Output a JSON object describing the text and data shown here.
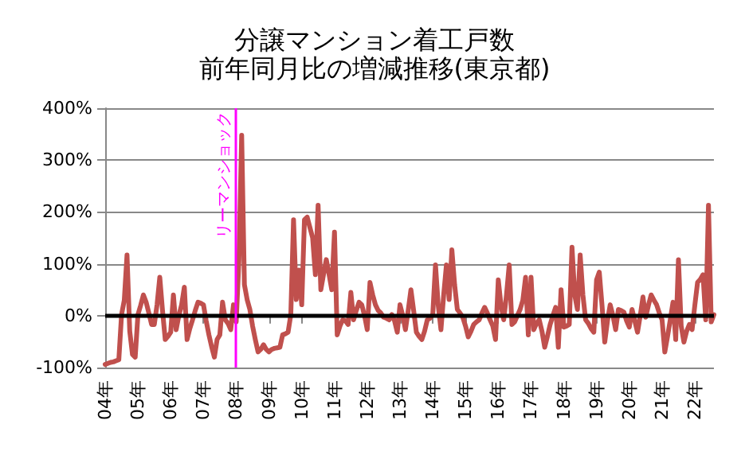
{
  "chart_data": {
    "type": "line",
    "title": "分譲マンション着工戸数",
    "subtitle": "前年同月比の増減推移(東京都)",
    "categories": [
      "04年",
      null,
      null,
      null,
      null,
      null,
      null,
      null,
      null,
      null,
      null,
      null,
      "05年",
      null,
      null,
      null,
      null,
      null,
      null,
      null,
      null,
      null,
      null,
      null,
      "06年",
      null,
      null,
      null,
      null,
      null,
      null,
      null,
      null,
      null,
      null,
      null,
      "07年",
      null,
      null,
      null,
      null,
      null,
      null,
      null,
      null,
      null,
      null,
      null,
      "08年",
      null,
      null,
      null,
      null,
      null,
      null,
      null,
      null,
      null,
      null,
      null,
      "09年",
      null,
      null,
      null,
      null,
      null,
      null,
      null,
      null,
      null,
      null,
      null,
      "10年",
      null,
      null,
      null,
      null,
      null,
      null,
      null,
      null,
      null,
      null,
      null,
      "11年",
      null,
      null,
      null,
      null,
      null,
      null,
      null,
      null,
      null,
      null,
      null,
      "12年",
      null,
      null,
      null,
      null,
      null,
      null,
      null,
      null,
      null,
      null,
      null,
      "13年",
      null,
      null,
      null,
      null,
      null,
      null,
      null,
      null,
      null,
      null,
      null,
      "14年",
      null,
      null,
      null,
      null,
      null,
      null,
      null,
      null,
      null,
      null,
      null,
      "15年",
      null,
      null,
      null,
      null,
      null,
      null,
      null,
      null,
      null,
      null,
      null,
      "16年",
      null,
      null,
      null,
      null,
      null,
      null,
      null,
      null,
      null,
      null,
      null,
      "17年",
      null,
      null,
      null,
      null,
      null,
      null,
      null,
      null,
      null,
      null,
      null,
      "18年",
      null,
      null,
      null,
      null,
      null,
      null,
      null,
      null,
      null,
      null,
      null,
      "19年",
      null,
      null,
      null,
      null,
      null,
      null,
      null,
      null,
      null,
      null,
      null,
      "20年",
      null,
      null,
      null,
      null,
      null,
      null,
      null,
      null,
      null,
      null,
      null,
      "21年",
      null,
      null,
      null,
      null,
      null,
      null,
      null,
      null,
      null,
      null,
      null,
      "22年",
      null,
      null,
      null,
      null,
      null,
      null,
      null
    ],
    "series": [
      {
        "color": "#c0504d",
        "values": [
          -94,
          -92,
          -90,
          -89,
          -87,
          -85,
          2,
          30,
          117,
          -30,
          -75,
          -80,
          2,
          20,
          40,
          26,
          5,
          -17,
          -17,
          21,
          74,
          10,
          -46,
          -40,
          -32,
          40,
          -27,
          0,
          21,
          55,
          -46,
          -25,
          -8,
          10,
          26,
          24,
          21,
          -10,
          -37,
          -60,
          -80,
          -46,
          -37,
          26,
          -8,
          -15,
          -27,
          21,
          -12,
          108,
          348,
          60,
          31,
          12,
          -20,
          -46,
          -70,
          -65,
          -56,
          -65,
          -70,
          -65,
          -63,
          -62,
          -61,
          -37,
          -35,
          -32,
          2,
          185,
          31,
          88,
          21,
          185,
          190,
          170,
          150,
          79,
          213,
          50,
          80,
          108,
          80,
          50,
          161,
          -37,
          -20,
          -8,
          -10,
          -17,
          45,
          -8,
          10,
          26,
          21,
          0,
          -27,
          64,
          40,
          21,
          10,
          5,
          -3,
          -5,
          -8,
          2,
          -10,
          -32,
          21,
          0,
          -27,
          10,
          50,
          10,
          -32,
          -40,
          -46,
          -30,
          -8,
          -5,
          2,
          98,
          20,
          -27,
          40,
          98,
          31,
          127,
          60,
          12,
          5,
          -3,
          -20,
          -41,
          -30,
          -17,
          -12,
          -8,
          5,
          16,
          5,
          -8,
          -20,
          -46,
          69,
          20,
          -8,
          40,
          98,
          -17,
          -12,
          0,
          12,
          30,
          74,
          -37,
          74,
          -27,
          -15,
          -8,
          -30,
          -61,
          -40,
          -17,
          0,
          16,
          -61,
          50,
          -22,
          -20,
          -17,
          132,
          40,
          12,
          117,
          40,
          -8,
          -15,
          -25,
          -32,
          69,
          84,
          20,
          -51,
          -10,
          21,
          0,
          -27,
          12,
          10,
          7,
          -10,
          -22,
          12,
          -10,
          -32,
          0,
          36,
          -3,
          20,
          40,
          30,
          21,
          5,
          -8,
          -70,
          -40,
          -8,
          26,
          -46,
          108,
          -20,
          -51,
          -30,
          -17,
          -27,
          20,
          64,
          70,
          79,
          -8,
          213,
          -12,
          2
        ]
      }
    ],
    "ylim": [
      -100,
      400
    ],
    "yticks": [
      {
        "value": -100,
        "label": "-100%"
      },
      {
        "value": 0,
        "label": "0%"
      },
      {
        "value": 100,
        "label": "100%"
      },
      {
        "value": 200,
        "label": "200%"
      },
      {
        "value": 300,
        "label": "300%"
      },
      {
        "value": 400,
        "label": "400%"
      }
    ],
    "ref_lines": [
      {
        "axis": "y",
        "value": 0,
        "color": "#000000"
      },
      {
        "axis": "x",
        "value": "08年",
        "label": "リーマンショック",
        "color": "#ff00ff"
      }
    ],
    "grid": "y",
    "marker": "none",
    "line_style": "solid"
  }
}
